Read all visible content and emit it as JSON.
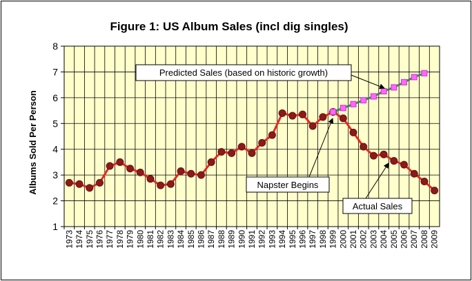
{
  "chart_data": {
    "type": "line",
    "title": "Figure 1: US Album Sales (incl dig singles)",
    "xlabel": "",
    "ylabel": "Albums Sold Per Person",
    "ylim": [
      1,
      8
    ],
    "yticks": [
      "1",
      "2",
      "3",
      "4",
      "5",
      "6",
      "7",
      "8"
    ],
    "grid": true,
    "categories": [
      "1973",
      "1974",
      "1975",
      "1976",
      "1977",
      "1978",
      "1979",
      "1980",
      "1981",
      "1982",
      "1983",
      "1984",
      "1985",
      "1986",
      "1987",
      "1988",
      "1989",
      "1990",
      "1991",
      "1992",
      "1993",
      "1994",
      "1995",
      "1996",
      "1997",
      "1998",
      "1999",
      "2000",
      "2001",
      "2002",
      "2003",
      "2004",
      "2005",
      "2006",
      "2007",
      "2008",
      "2009"
    ],
    "series": [
      {
        "name": "Actual Sales",
        "color": "#e8281b",
        "marker_color": "#8b1a1a",
        "x": [
          "1973",
          "1974",
          "1975",
          "1976",
          "1977",
          "1978",
          "1979",
          "1980",
          "1981",
          "1982",
          "1983",
          "1984",
          "1985",
          "1986",
          "1987",
          "1988",
          "1989",
          "1990",
          "1991",
          "1992",
          "1993",
          "1994",
          "1995",
          "1996",
          "1997",
          "1998",
          "1999",
          "2000",
          "2001",
          "2002",
          "2003",
          "2004",
          "2005",
          "2006",
          "2007",
          "2008",
          "2009"
        ],
        "values": [
          2.7,
          2.65,
          2.5,
          2.7,
          3.35,
          3.5,
          3.25,
          3.1,
          2.85,
          2.6,
          2.65,
          3.15,
          3.05,
          3.0,
          3.5,
          3.9,
          3.85,
          4.1,
          3.85,
          4.25,
          4.55,
          5.4,
          5.3,
          5.35,
          4.9,
          5.25,
          5.45,
          5.2,
          4.65,
          4.1,
          3.75,
          3.8,
          3.55,
          3.4,
          3.05,
          2.75,
          2.4
        ]
      },
      {
        "name": "Predicted Sales (based on historic growth)",
        "color": "#2e8b57",
        "marker_color": "#ff66ff",
        "x": [
          "1999",
          "2000",
          "2001",
          "2002",
          "2003",
          "2004",
          "2005",
          "2006",
          "2007",
          "2008"
        ],
        "values": [
          5.45,
          5.6,
          5.75,
          5.9,
          6.05,
          6.25,
          6.4,
          6.6,
          6.8,
          6.95
        ]
      }
    ],
    "annotations": [
      {
        "text": "Predicted Sales (based on historic growth)",
        "target_year": "2004",
        "target_value": 6.25
      },
      {
        "text": "Napster Begins",
        "target_year": "1999",
        "target_value": 5.45
      },
      {
        "text": "Actual Sales",
        "target_year": "2004",
        "target_value": 3.8
      }
    ]
  }
}
